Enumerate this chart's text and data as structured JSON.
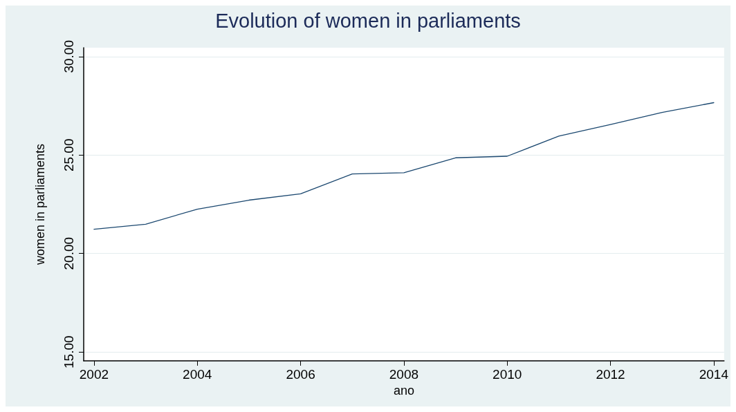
{
  "chart_data": {
    "type": "line",
    "title": "Evolution of women in parliaments",
    "xlabel": "ano",
    "ylabel": "women in parliaments",
    "x": [
      2002,
      2003,
      2004,
      2005,
      2006,
      2007,
      2008,
      2009,
      2010,
      2011,
      2012,
      2013,
      2014
    ],
    "series": [
      {
        "color": "#1a476f",
        "values": [
          21.23,
          21.49,
          22.25,
          22.71,
          23.03,
          24.04,
          24.1,
          24.86,
          24.94,
          25.96,
          26.55,
          27.16,
          27.66
        ]
      }
    ],
    "xlim": [
      2001.8,
      2014.2
    ],
    "xticks": [
      2002,
      2004,
      2006,
      2008,
      2010,
      2012,
      2014
    ],
    "ylim": [
      14.55,
      30.45
    ],
    "yticks": [
      {
        "value": 15,
        "label": "15.00"
      },
      {
        "value": 20,
        "label": "20.00"
      },
      {
        "value": 25,
        "label": "25.00"
      },
      {
        "value": 30,
        "label": "30.00"
      }
    ],
    "grid": "y",
    "marker": "none",
    "line_style": "solid"
  }
}
